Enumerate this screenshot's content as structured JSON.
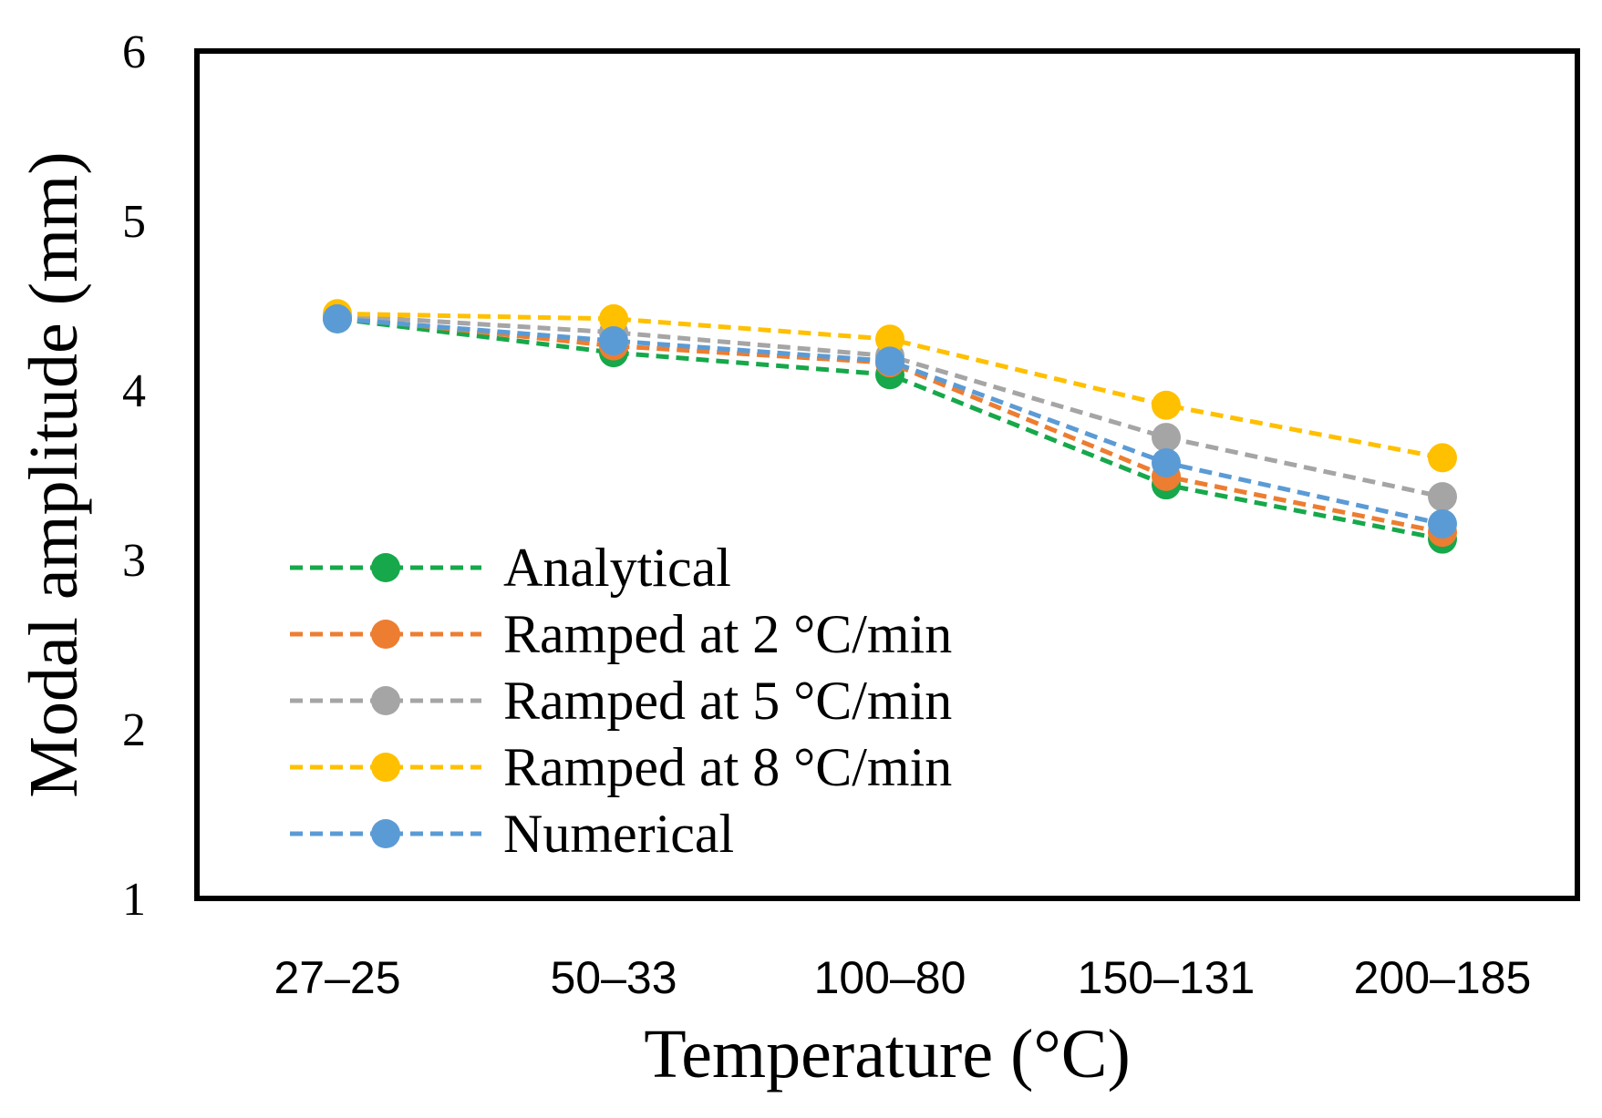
{
  "chart_data": {
    "type": "line",
    "title": "",
    "xlabel": "Temperature (°C)",
    "ylabel": "Modal amplitude (mm)",
    "categories": [
      "27–25",
      "50–33",
      "100–80",
      "150–131",
      "200–185"
    ],
    "ylim": [
      1,
      6
    ],
    "yticks": [
      "1",
      "2",
      "3",
      "4",
      "5",
      "6"
    ],
    "grid": false,
    "legend_position": "bottom-left",
    "line_style": "dashed",
    "series": [
      {
        "name": "Analytical",
        "color": "#16a84a",
        "values": [
          4.42,
          4.22,
          4.09,
          3.44,
          3.12
        ]
      },
      {
        "name": "Ramped at 2 °C/min",
        "color": "#ed7d31",
        "values": [
          4.43,
          4.26,
          4.16,
          3.49,
          3.16
        ]
      },
      {
        "name": "Ramped at 5 °C/min",
        "color": "#a5a5a5",
        "values": [
          4.44,
          4.34,
          4.2,
          3.72,
          3.37
        ]
      },
      {
        "name": "Ramped at 8 °C/min",
        "color": "#ffc000",
        "values": [
          4.45,
          4.42,
          4.3,
          3.91,
          3.6
        ]
      },
      {
        "name": "Numerical",
        "color": "#5b9bd5",
        "values": [
          4.42,
          4.29,
          4.17,
          3.57,
          3.21
        ]
      }
    ]
  }
}
